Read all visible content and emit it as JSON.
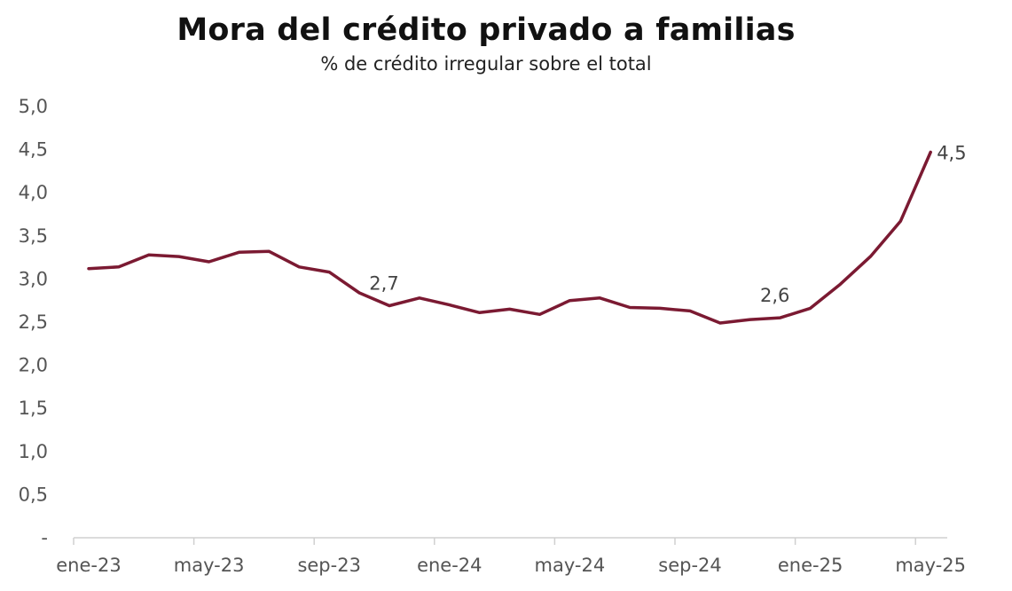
{
  "chart_data": {
    "type": "line",
    "title": "Mora del crédito privado a familias",
    "subtitle": "% de crédito irregular sobre el total",
    "xlabel": "",
    "ylabel": "",
    "ylim": [
      0,
      5
    ],
    "yticks": [
      0,
      0.5,
      1,
      1.5,
      2,
      2.5,
      3,
      3.5,
      4,
      4.5,
      5
    ],
    "ytick_labels": [
      "-",
      "0,5",
      "1,0",
      "1,5",
      "2,0",
      "2,5",
      "3,0",
      "3,5",
      "4,0",
      "4,5",
      "5,0"
    ],
    "xtick_labels": [
      "ene-23",
      "may-23",
      "sep-23",
      "ene-24",
      "may-24",
      "sep-24",
      "ene-25",
      "may-25"
    ],
    "xtick_positions": [
      0,
      4,
      8,
      12,
      16,
      20,
      24,
      28
    ],
    "grid": false,
    "legend": "none",
    "color": "#7b1a32",
    "series": [
      {
        "name": "Mora",
        "x": [
          "ene-23",
          "feb-23",
          "mar-23",
          "abr-23",
          "may-23",
          "jun-23",
          "jul-23",
          "ago-23",
          "sep-23",
          "oct-23",
          "nov-23",
          "dic-23",
          "ene-24",
          "feb-24",
          "mar-24",
          "abr-24",
          "may-24",
          "jun-24",
          "jul-24",
          "ago-24",
          "sep-24",
          "oct-24",
          "nov-24",
          "dic-24",
          "ene-25",
          "feb-25",
          "mar-25",
          "abr-25",
          "may-25"
        ],
        "values": [
          3.12,
          3.14,
          3.28,
          3.26,
          3.2,
          3.31,
          3.32,
          3.14,
          3.08,
          2.84,
          2.69,
          2.78,
          2.7,
          2.61,
          2.65,
          2.59,
          2.75,
          2.78,
          2.67,
          2.66,
          2.63,
          2.49,
          2.53,
          2.55,
          2.66,
          2.94,
          3.26,
          3.67,
          4.47
        ]
      }
    ],
    "annotations": [
      {
        "index": 10,
        "text": "2,7"
      },
      {
        "index": 23,
        "text": "2,6"
      },
      {
        "index": 28,
        "text": "4,5"
      }
    ]
  }
}
